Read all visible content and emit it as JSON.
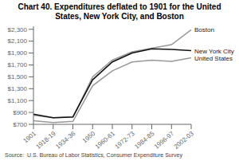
{
  "chart_data": {
    "type": "line",
    "title": "Chart 40. Expenditures deflated to 1901 for the United States, New York City, and Boston",
    "annotations": [
      "Source:  U.S. Bureau of Labor Statistics, Consumer Expenditure Survey"
    ],
    "categories": [
      "1901",
      "1918-19",
      "1934-36",
      "1950",
      "1960-61",
      "1972-73",
      "1984-85",
      "1996-97",
      "2002-03"
    ],
    "series": [
      {
        "name": "Boston",
        "color": "#999999",
        "values": [
          855,
          810,
          820,
          1500,
          1780,
          1920,
          1980,
          2040,
          2290
        ]
      },
      {
        "name": "United States",
        "color": "#999999",
        "values": [
          760,
          730,
          750,
          1350,
          1600,
          1750,
          1780,
          1760,
          1820
        ]
      },
      {
        "name": "New York City",
        "color": "#111111",
        "values": [
          870,
          810,
          825,
          1450,
          1750,
          1900,
          1970,
          1960,
          1940
        ]
      }
    ],
    "ylim": [
      700,
      2350
    ],
    "yticks": [
      {
        "value": 700,
        "label": "$700"
      },
      {
        "value": 900,
        "label": "$900"
      },
      {
        "value": 1100,
        "label": "$1,100"
      },
      {
        "value": 1300,
        "label": "$1,300"
      },
      {
        "value": 1500,
        "label": "$1,500"
      },
      {
        "value": 1700,
        "label": "$1,700"
      },
      {
        "value": 1900,
        "label": "$1,900"
      },
      {
        "value": 2100,
        "label": "$2,100"
      },
      {
        "value": 2300,
        "label": "$2,300"
      }
    ],
    "grid": false
  }
}
